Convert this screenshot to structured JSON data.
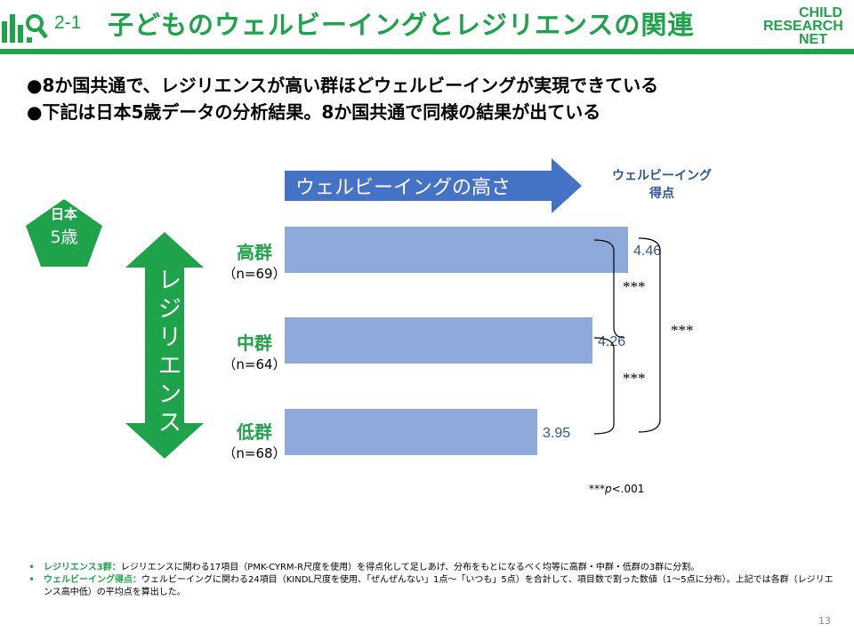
{
  "header": {
    "slide_number": "2-1",
    "title": "子どものウェルビーイングとレジリエンスの関連",
    "brand": {
      "line1": "CHILD",
      "line2": "RESEARCH",
      "line3": "NET"
    }
  },
  "bullets": [
    "●8か国共通で、レジリエンスが高い群ほどウェルビーイングが実現できている",
    "●下記は日本5歳データの分析結果。8か国共通で同様の結果が出ている"
  ],
  "badge": {
    "country": "日本",
    "age": "5歳"
  },
  "axes": {
    "resilience_label": "レジリエンス",
    "wellbeing_label": "ウェルビーイングの高さ",
    "score_header_line1": "ウェルビーイング",
    "score_header_line2": "得点"
  },
  "chart_data": {
    "type": "bar",
    "orientation": "horizontal",
    "categories": [
      "高群",
      "中群",
      "低群"
    ],
    "category_n": [
      "（n=69）",
      "（n=64）",
      "（n=68）"
    ],
    "values": [
      4.46,
      4.26,
      3.95
    ],
    "value_labels": [
      "4.46",
      "4.26",
      "3.95"
    ],
    "significance": {
      "high_vs_mid": "***",
      "mid_vs_low": "***",
      "high_vs_low": "***"
    },
    "note_prefix": "***",
    "note_p": "p",
    "note_suffix": "<.001",
    "colors": {
      "bar": "#8eaadb",
      "label": "#2f5597"
    }
  },
  "footnotes": [
    {
      "key": "レジリエンス3群：",
      "text": "レジリエンスに関わる17項目（PMK-CYRM-R尺度を使用）を得点化して足しあげ、分布をもとになるべく均等に高群・中群・低群の3群に分割。"
    },
    {
      "key": "ウェルビーイング得点：",
      "text": "ウェルビーイングに関わる24項目（KINDL尺度を使用、「ぜんぜんない」1点～「いつも」5点）を合計して、項目数で割った数値（1～5点に分布）。上記では各群（レジリエンス高中低）の平均点を算出した。"
    }
  ],
  "page_number": "13",
  "colors": {
    "green": "#1ea34a",
    "blue_dark": "#2f5597",
    "blue_arrow": "#4472c4",
    "bar": "#8eaadb"
  }
}
